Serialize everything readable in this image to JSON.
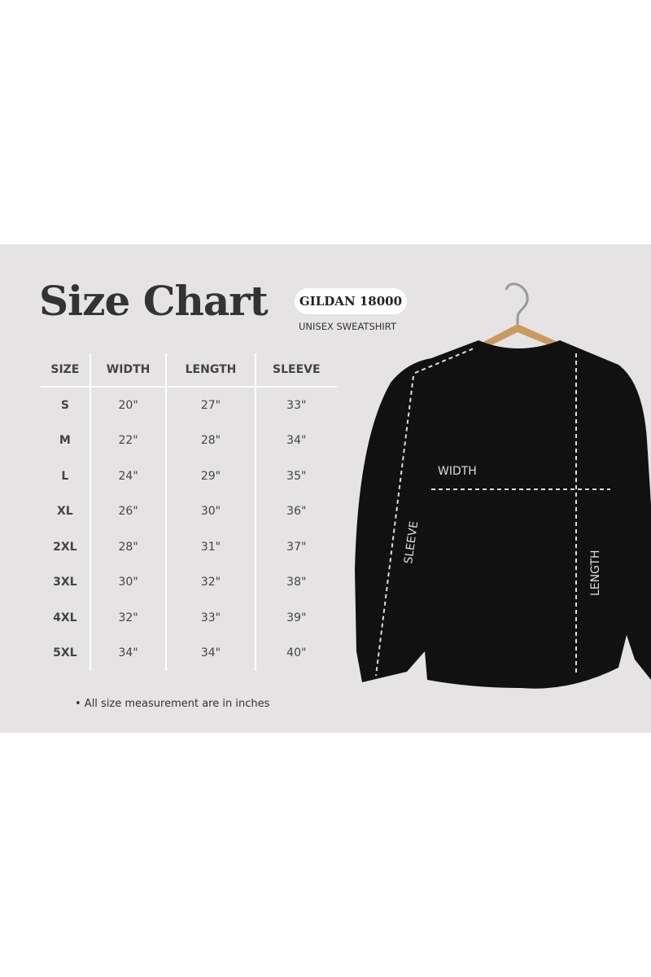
{
  "title": "Size Chart",
  "badge": "GILDAN 18000",
  "subtitle": "UNISEX SWEATSHIRT",
  "table": {
    "headers": [
      "SIZE",
      "WIDTH",
      "LENGTH",
      "SLEEVE"
    ],
    "rows": [
      [
        "S",
        "20\"",
        "27\"",
        "33\""
      ],
      [
        "M",
        "22\"",
        "28\"",
        "34\""
      ],
      [
        "L",
        "24\"",
        "29\"",
        "35\""
      ],
      [
        "XL",
        "26\"",
        "30\"",
        "36\""
      ],
      [
        "2XL",
        "28\"",
        "31\"",
        "37\""
      ],
      [
        "3XL",
        "30\"",
        "32\"",
        "38\""
      ],
      [
        "4XL",
        "32\"",
        "33\"",
        "39\""
      ],
      [
        "5XL",
        "34\"",
        "34\"",
        "40\""
      ]
    ]
  },
  "note": "• All size measurement are in inches",
  "diagram": {
    "width_label": "WIDTH",
    "sleeve_label": "SLEEVE",
    "length_label": "LENGTH"
  }
}
